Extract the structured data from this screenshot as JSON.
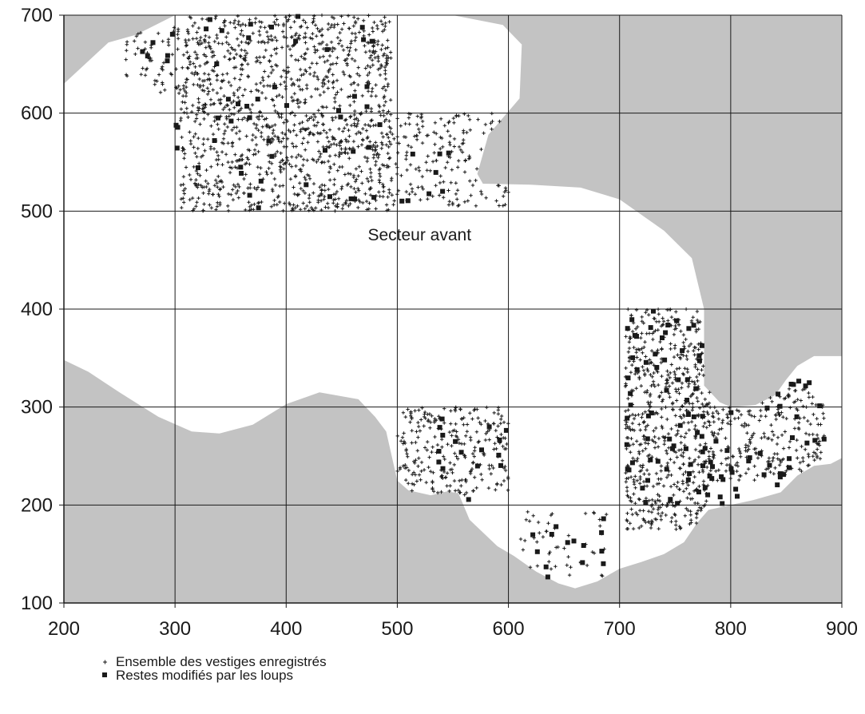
{
  "chart_data": {
    "type": "scatter",
    "title": "",
    "xlabel": "",
    "ylabel": "",
    "xlim": [
      200,
      900
    ],
    "ylim": [
      100,
      700
    ],
    "x_ticks": [
      200,
      300,
      400,
      500,
      600,
      700,
      800,
      900
    ],
    "y_ticks": [
      100,
      200,
      300,
      400,
      500,
      600,
      700
    ],
    "grid": true,
    "colors": {
      "shaded_zone": "#c3c3c3",
      "points": "#1a1a1a",
      "grid": "#1a1a1a"
    },
    "annotations": [
      {
        "text": "Secteur avant",
        "x": 520,
        "y": 470
      }
    ],
    "legend": {
      "placement": "bottom-left",
      "entries": [
        {
          "marker": "plus",
          "label": "Ensemble des vestiges enregistrés"
        },
        {
          "marker": "square",
          "label": "Restes modifiés par les loups"
        }
      ]
    },
    "shaded_regions": [
      {
        "name": "zone-top-left",
        "points": [
          [
            200,
            700
          ],
          [
            300,
            700
          ],
          [
            265,
            680
          ],
          [
            240,
            672
          ],
          [
            200,
            630
          ]
        ]
      },
      {
        "name": "zone-top-right",
        "points": [
          [
            550,
            700
          ],
          [
            900,
            700
          ],
          [
            900,
            352
          ],
          [
            875,
            352
          ],
          [
            860,
            342
          ],
          [
            850,
            328
          ],
          [
            840,
            312
          ],
          [
            822,
            302
          ],
          [
            800,
            300
          ],
          [
            790,
            305
          ],
          [
            776,
            322
          ],
          [
            776,
            400
          ],
          [
            765,
            452
          ],
          [
            740,
            480
          ],
          [
            700,
            512
          ],
          [
            665,
            524
          ],
          [
            620,
            527
          ],
          [
            577,
            528
          ],
          [
            572,
            538
          ],
          [
            582,
            578
          ],
          [
            610,
            615
          ],
          [
            612,
            670
          ],
          [
            595,
            690
          ],
          [
            550,
            700
          ]
        ]
      },
      {
        "name": "zone-bottom",
        "points": [
          [
            200,
            348
          ],
          [
            222,
            336
          ],
          [
            250,
            315
          ],
          [
            285,
            290
          ],
          [
            315,
            275
          ],
          [
            340,
            273
          ],
          [
            370,
            282
          ],
          [
            400,
            303
          ],
          [
            430,
            315
          ],
          [
            465,
            308
          ],
          [
            480,
            290
          ],
          [
            490,
            275
          ],
          [
            500,
            225
          ],
          [
            510,
            215
          ],
          [
            530,
            210
          ],
          [
            545,
            214
          ],
          [
            555,
            212
          ],
          [
            565,
            185
          ],
          [
            590,
            158
          ],
          [
            605,
            148
          ],
          [
            625,
            132
          ],
          [
            645,
            120
          ],
          [
            660,
            115
          ],
          [
            680,
            122
          ],
          [
            700,
            135
          ],
          [
            720,
            142
          ],
          [
            740,
            150
          ],
          [
            758,
            162
          ],
          [
            770,
            182
          ],
          [
            780,
            195
          ],
          [
            800,
            200
          ],
          [
            820,
            205
          ],
          [
            845,
            213
          ],
          [
            860,
            230
          ],
          [
            875,
            240
          ],
          [
            890,
            242
          ],
          [
            900,
            248
          ],
          [
            900,
            100
          ],
          [
            200,
            100
          ]
        ]
      }
    ],
    "series": [
      {
        "name": "Ensemble des vestiges enregistrés",
        "marker": "plus",
        "clusters": [
          {
            "x_range": [
              305,
              495
            ],
            "y_range": [
              500,
              700
            ],
            "count": 1300
          },
          {
            "x_range": [
              255,
              305
            ],
            "y_range": [
              620,
              690
            ],
            "count": 60
          },
          {
            "x_range": [
              490,
              600
            ],
            "y_range": [
              505,
              600
            ],
            "count": 180
          },
          {
            "x_range": [
              500,
              600
            ],
            "y_range": [
              210,
              300
            ],
            "count": 260
          },
          {
            "x_range": [
              610,
              690
            ],
            "y_range": [
              125,
              195
            ],
            "count": 50
          },
          {
            "x_range": [
              705,
              780
            ],
            "y_range": [
              175,
              400
            ],
            "count": 620
          },
          {
            "x_range": [
              780,
              885
            ],
            "y_range": [
              225,
              320
            ],
            "count": 260
          }
        ]
      },
      {
        "name": "Restes modifiés par les loups",
        "marker": "square",
        "clusters": [
          {
            "x_range": [
              300,
              495
            ],
            "y_range": [
              500,
              700
            ],
            "count": 48
          },
          {
            "x_range": [
              265,
              300
            ],
            "y_range": [
              630,
              690
            ],
            "count": 6
          },
          {
            "x_range": [
              500,
              550
            ],
            "y_range": [
              505,
              560
            ],
            "count": 8
          },
          {
            "x_range": [
              520,
              600
            ],
            "y_range": [
              200,
              300
            ],
            "count": 16
          },
          {
            "x_range": [
              610,
              690
            ],
            "y_range": [
              125,
              195
            ],
            "count": 14
          },
          {
            "x_range": [
              705,
              780
            ],
            "y_range": [
              200,
              400
            ],
            "count": 65
          },
          {
            "x_range": [
              780,
              885
            ],
            "y_range": [
              200,
              330
            ],
            "count": 40
          }
        ]
      }
    ]
  }
}
